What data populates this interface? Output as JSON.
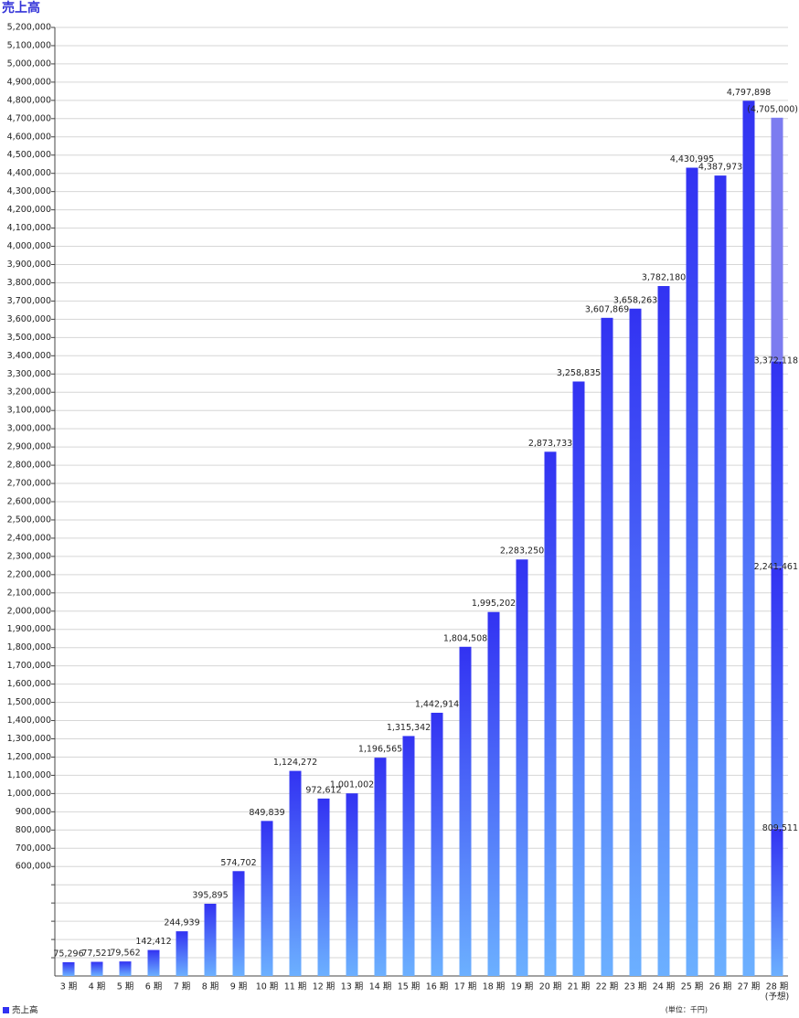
{
  "chart_data": {
    "type": "bar",
    "title": "売上高",
    "unit_note": "(単位：千円)",
    "categories": [
      "3 期",
      "4 期",
      "5 期",
      "6 期",
      "7 期",
      "8 期",
      "9 期",
      "10 期",
      "11 期",
      "12 期",
      "13 期",
      "14 期",
      "15 期",
      "16 期",
      "17 期",
      "18 期",
      "19 期",
      "20 期",
      "21 期",
      "22 期",
      "23 期",
      "24 期",
      "25 期",
      "26 期",
      "27 期",
      "28 期"
    ],
    "category_note": "(予想)",
    "series": [
      {
        "name": "売上高",
        "color": "#3232f2",
        "gradient_end": "#6cb0ff",
        "forecast_color": "#7c7cf0",
        "values": [
          75296,
          77521,
          79562,
          142412,
          244939,
          395895,
          574702,
          849839,
          1124272,
          972612,
          1001002,
          1196565,
          1315342,
          1442914,
          1804508,
          1995202,
          2283250,
          2873733,
          3258835,
          3607869,
          3658263,
          3782180,
          4430995,
          4387973,
          4797898,
          4705000
        ],
        "value_labels": [
          "75,296",
          "77,521",
          "79,562",
          "142,412",
          "244,939",
          "395,895",
          "574,702",
          "849,839",
          "1,124,272",
          "972,612",
          "1,001,002",
          "1,196,565",
          "1,315,342",
          "1,442,914",
          "1,804,508",
          "1,995,202",
          "2,283,250",
          "2,873,733",
          "3,258,835",
          "3,607,869",
          "3,658,263",
          "3,782,180",
          "4,430,995",
          "4,387,973",
          "4,797,898",
          "(4,705,000)"
        ]
      }
    ],
    "forecast_progress": {
      "values": [
        3372118,
        2241461,
        809511
      ],
      "value_labels": [
        "3,372,118",
        "2,241,461",
        "809,511"
      ]
    },
    "ylim": [
      0,
      5200000
    ],
    "yticks_unlabeled": [
      100000,
      200000,
      300000,
      400000,
      500000
    ],
    "yticks": [
      {
        "value": 600000,
        "label": "600,000"
      },
      {
        "value": 700000,
        "label": "700,000"
      },
      {
        "value": 800000,
        "label": "800,000"
      },
      {
        "value": 900000,
        "label": "900,000"
      },
      {
        "value": 1000000,
        "label": "1,000,000"
      },
      {
        "value": 1100000,
        "label": "1,100,000"
      },
      {
        "value": 1200000,
        "label": "1,200,000"
      },
      {
        "value": 1300000,
        "label": "1,300,000"
      },
      {
        "value": 1400000,
        "label": "1,400,000"
      },
      {
        "value": 1500000,
        "label": "1,500,000"
      },
      {
        "value": 1600000,
        "label": "1,600,000"
      },
      {
        "value": 1700000,
        "label": "1,700,000"
      },
      {
        "value": 1800000,
        "label": "1,800,000"
      },
      {
        "value": 1900000,
        "label": "1,900,000"
      },
      {
        "value": 2000000,
        "label": "2,000,000"
      },
      {
        "value": 2100000,
        "label": "2,100,000"
      },
      {
        "value": 2200000,
        "label": "2,200,000"
      },
      {
        "value": 2300000,
        "label": "2,300,000"
      },
      {
        "value": 2400000,
        "label": "2,400,000"
      },
      {
        "value": 2500000,
        "label": "2,500,000"
      },
      {
        "value": 2600000,
        "label": "2,600,000"
      },
      {
        "value": 2700000,
        "label": "2,700,000"
      },
      {
        "value": 2800000,
        "label": "2,800,000"
      },
      {
        "value": 2900000,
        "label": "2,900,000"
      },
      {
        "value": 3000000,
        "label": "3,000,000"
      },
      {
        "value": 3100000,
        "label": "3,100,000"
      },
      {
        "value": 3200000,
        "label": "3,200,000"
      },
      {
        "value": 3300000,
        "label": "3,300,000"
      },
      {
        "value": 3400000,
        "label": "3,400,000"
      },
      {
        "value": 3500000,
        "label": "3,500,000"
      },
      {
        "value": 3600000,
        "label": "3,600,000"
      },
      {
        "value": 3700000,
        "label": "3,700,000"
      },
      {
        "value": 3800000,
        "label": "3,800,000"
      },
      {
        "value": 3900000,
        "label": "3,900,000"
      },
      {
        "value": 4000000,
        "label": "4,000,000"
      },
      {
        "value": 4100000,
        "label": "4,100,000"
      },
      {
        "value": 4200000,
        "label": "4,200,000"
      },
      {
        "value": 4300000,
        "label": "4,300,000"
      },
      {
        "value": 4400000,
        "label": "4,400,000"
      },
      {
        "value": 4500000,
        "label": "4,500,000"
      },
      {
        "value": 4600000,
        "label": "4,600,000"
      },
      {
        "value": 4700000,
        "label": "4,700,000"
      },
      {
        "value": 4800000,
        "label": "4,800,000"
      },
      {
        "value": 4900000,
        "label": "4,900,000"
      },
      {
        "value": 5000000,
        "label": "5,000,000"
      },
      {
        "value": 5100000,
        "label": "5,100,000"
      },
      {
        "value": 5200000,
        "label": "5,200,000"
      }
    ],
    "grid": true,
    "legend": "bottom-left"
  }
}
